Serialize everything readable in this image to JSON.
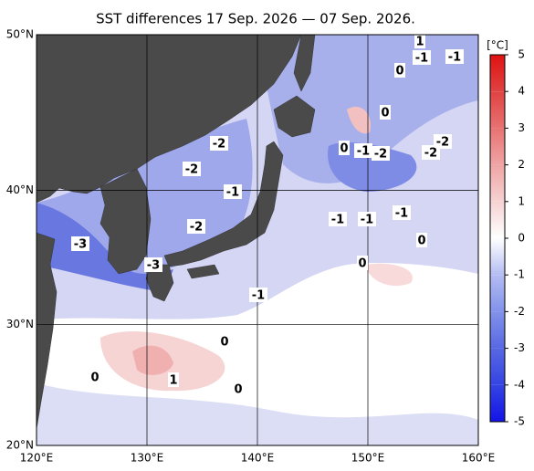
{
  "chart_data": {
    "type": "map",
    "title": "SST differences 17 Sep. 2026 — 07 Sep. 2026.",
    "xlim": [
      120,
      160
    ],
    "ylim": [
      20,
      50
    ],
    "xticks": [
      {
        "value": 120,
        "label": "120°E"
      },
      {
        "value": 130,
        "label": "130°E"
      },
      {
        "value": 140,
        "label": "140°E"
      },
      {
        "value": 150,
        "label": "150°E"
      },
      {
        "value": 160,
        "label": "160°E"
      }
    ],
    "yticks": [
      {
        "value": 20,
        "label": "20°N"
      },
      {
        "value": 30,
        "label": "30°N"
      },
      {
        "value": 40,
        "label": "40°N"
      },
      {
        "value": 50,
        "label": "50°N"
      }
    ],
    "grid": true,
    "contour_labels": [
      "-3",
      "-3",
      "-2",
      "-2",
      "-1",
      "-2",
      "-1",
      "-1",
      "-1",
      "-1",
      "-2",
      "-1",
      "0",
      "-2",
      "-2",
      "0",
      "0",
      "1",
      "-1",
      "-1",
      "0",
      "0",
      "0",
      "1",
      "0",
      "0"
    ],
    "colorbar": {
      "label": "[°C]",
      "lim": [
        -5,
        5
      ],
      "ticks": [
        -5,
        -4,
        -3,
        -2,
        -1,
        0,
        1,
        2,
        3,
        4,
        5
      ],
      "colors": [
        "#1414e6",
        "#3444e2",
        "#5868e2",
        "#8292ea",
        "#b4bcf2",
        "#ffffff",
        "#f6d2d2",
        "#f0a4a4",
        "#e87272",
        "#e04242",
        "#e01212"
      ]
    }
  }
}
